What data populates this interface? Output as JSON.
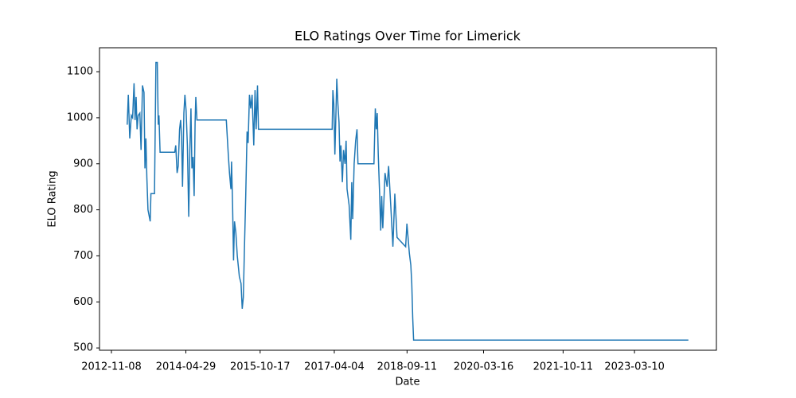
{
  "chart_data": {
    "type": "line",
    "title": "ELO Ratings Over Time for Limerick",
    "x_label": "Date",
    "y_label": "ELO Rating",
    "x": [
      "2013-03-02",
      "2013-03-10",
      "2013-03-20",
      "2013-04-01",
      "2013-04-10",
      "2013-04-20",
      "2013-04-28",
      "2013-05-05",
      "2013-05-12",
      "2013-05-20",
      "2013-06-01",
      "2013-06-10",
      "2013-06-20",
      "2013-07-01",
      "2013-07-08",
      "2013-07-15",
      "2013-07-22",
      "2013-07-30",
      "2013-08-15",
      "2013-08-20",
      "2013-09-15",
      "2013-09-25",
      "2013-10-05",
      "2013-10-12",
      "2013-10-17",
      "2013-10-25",
      "2014-02-08",
      "2014-02-15",
      "2014-02-25",
      "2014-03-05",
      "2014-03-15",
      "2014-03-22",
      "2014-03-29",
      "2014-04-05",
      "2014-04-15",
      "2014-04-22",
      "2014-05-01",
      "2014-05-10",
      "2014-05-20",
      "2014-05-28",
      "2014-06-05",
      "2014-06-12",
      "2014-06-20",
      "2014-06-28",
      "2014-07-05",
      "2014-07-10",
      "2014-07-18",
      "2015-02-15",
      "2015-03-01",
      "2015-03-10",
      "2015-03-20",
      "2015-03-25",
      "2015-04-01",
      "2015-04-08",
      "2015-04-15",
      "2015-04-25",
      "2015-05-05",
      "2015-05-20",
      "2015-06-01",
      "2015-06-10",
      "2015-06-18",
      "2015-06-25",
      "2015-07-05",
      "2015-07-15",
      "2015-07-22",
      "2015-08-01",
      "2015-08-10",
      "2015-08-20",
      "2015-09-01",
      "2015-09-10",
      "2015-09-18",
      "2015-09-28",
      "2015-10-05",
      "2017-03-20",
      "2017-03-25",
      "2017-04-01",
      "2017-04-08",
      "2017-04-15",
      "2017-04-22",
      "2017-04-30",
      "2017-05-08",
      "2017-05-15",
      "2017-05-22",
      "2017-06-01",
      "2017-06-10",
      "2017-06-20",
      "2017-06-28",
      "2017-07-05",
      "2017-07-20",
      "2017-08-01",
      "2017-08-08",
      "2017-08-15",
      "2017-08-25",
      "2017-09-05",
      "2017-09-15",
      "2017-09-22",
      "2018-01-15",
      "2018-01-25",
      "2018-02-01",
      "2018-02-08",
      "2018-02-15",
      "2018-02-25",
      "2018-03-05",
      "2018-03-12",
      "2018-03-20",
      "2018-04-05",
      "2018-04-20",
      "2018-05-01",
      "2018-05-20",
      "2018-06-01",
      "2018-06-15",
      "2018-07-01",
      "2018-08-01",
      "2018-09-01",
      "2018-09-10",
      "2018-09-28",
      "2018-10-08",
      "2018-10-15",
      "2018-10-22",
      "2018-10-28",
      "2024-04-02"
    ],
    "series": [
      {
        "name": "Limerick",
        "color": "#1f77b4",
        "values": [
          985,
          1050,
          955,
          1005,
          1000,
          1075,
          995,
          1045,
          975,
          1005,
          1010,
          930,
          1070,
          1055,
          890,
          955,
          870,
          800,
          775,
          835,
          835,
          1120,
          1120,
          985,
          1005,
          925,
          925,
          940,
          880,
          895,
          975,
          995,
          960,
          850,
          1010,
          1050,
          1015,
          940,
          785,
          930,
          1020,
          890,
          915,
          830,
          990,
          1045,
          995,
          995,
          920,
          880,
          845,
          905,
          810,
          690,
          775,
          750,
          700,
          655,
          640,
          585,
          610,
          710,
          830,
          970,
          945,
          1050,
          1020,
          1050,
          940,
          1060,
          975,
          1070,
          975,
          975,
          1060,
          1030,
          920,
          1000,
          1085,
          1030,
          990,
          905,
          940,
          860,
          930,
          900,
          950,
          845,
          810,
          735,
          860,
          780,
          900,
          950,
          975,
          900,
          900,
          1020,
          975,
          1010,
          920,
          835,
          755,
          830,
          760,
          880,
          850,
          895,
          790,
          720,
          835,
          740,
          730,
          720,
          770,
          705,
          680,
          640,
          565,
          517,
          517
        ]
      }
    ],
    "xlim": [
      "2012-08-14",
      "2024-10-21"
    ],
    "xticks": [
      "2012-11-08",
      "2014-04-29",
      "2015-10-17",
      "2017-04-04",
      "2018-09-11",
      "2020-03-16",
      "2021-10-11",
      "2023-03-10"
    ],
    "ylim": [
      495,
      1152
    ],
    "yticks": [
      500,
      600,
      700,
      800,
      900,
      1000,
      1100
    ],
    "grid": false
  }
}
